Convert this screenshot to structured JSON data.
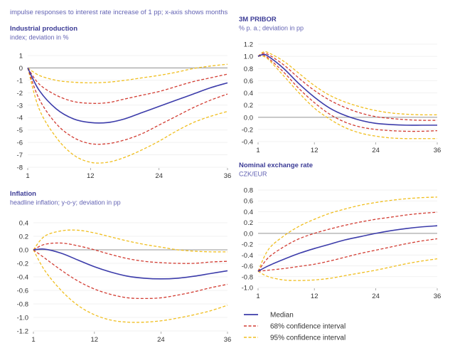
{
  "header": {
    "note": "impulse responses to interest rate increase of 1 pp; x-axis shows months"
  },
  "colors": {
    "median": "#3c3caa",
    "ci68": "#d23c32",
    "ci95": "#f0be1e",
    "title": "#3c3c96",
    "subtitle": "#6464b4",
    "zero": "#aaaaaa",
    "grid": "#eeeeee"
  },
  "legend": {
    "position": "bottom-right",
    "items": [
      "Median",
      "68% confidence interval",
      "95% confidence interval"
    ]
  },
  "chart_data": [
    {
      "type": "line",
      "title": "Industrial production",
      "subtitle": "index; deviation in %",
      "xticks": [
        "1",
        "12",
        "24",
        "36"
      ],
      "yticks": [
        "1",
        "0",
        "-1",
        "-2",
        "-3",
        "-4",
        "-5",
        "-6",
        "-7",
        "-8"
      ],
      "xlim": [
        1,
        36
      ],
      "ylim": [
        -8,
        1
      ],
      "grid": true,
      "x": [
        1,
        3,
        6,
        9,
        12,
        15,
        18,
        21,
        24,
        27,
        30,
        33,
        36
      ],
      "series": [
        {
          "name": "Median",
          "values": [
            0,
            -1.8,
            -3.3,
            -4.1,
            -4.4,
            -4.4,
            -4.1,
            -3.6,
            -3.1,
            -2.6,
            -2.1,
            -1.6,
            -1.2
          ]
        },
        {
          "name": "68% confidence interval",
          "values": [
            0,
            -1.3,
            -2.2,
            -2.7,
            -2.85,
            -2.8,
            -2.5,
            -2.2,
            -1.9,
            -1.5,
            -1.1,
            -0.8,
            -0.5
          ]
        },
        {
          "name": "68% confidence interval",
          "values": [
            0,
            -2.5,
            -4.5,
            -5.6,
            -6.1,
            -6.1,
            -5.8,
            -5.3,
            -4.6,
            -3.9,
            -3.2,
            -2.6,
            -2.1
          ]
        },
        {
          "name": "95% confidence interval",
          "values": [
            0,
            -0.6,
            -1.0,
            -1.15,
            -1.2,
            -1.15,
            -1.0,
            -0.8,
            -0.6,
            -0.35,
            -0.05,
            0.15,
            0.3
          ]
        },
        {
          "name": "95% confidence interval",
          "values": [
            0,
            -3.3,
            -5.6,
            -7.0,
            -7.6,
            -7.6,
            -7.2,
            -6.6,
            -5.9,
            -5.1,
            -4.4,
            -3.9,
            -3.5
          ]
        }
      ]
    },
    {
      "type": "line",
      "title": "3M PRIBOR",
      "subtitle": "% p. a.; deviation in pp",
      "xticks": [
        "1",
        "12",
        "24",
        "36"
      ],
      "yticks": [
        "1.2",
        "1.0",
        "0.8",
        "0.6",
        "0.4",
        "0.2",
        "0.0",
        "-0.2",
        "-0.4"
      ],
      "xlim": [
        1,
        36
      ],
      "ylim": [
        -0.4,
        1.2
      ],
      "grid": true,
      "x": [
        1,
        2,
        3,
        6,
        9,
        12,
        15,
        18,
        21,
        24,
        27,
        30,
        33,
        36
      ],
      "series": [
        {
          "name": "Median",
          "values": [
            1.0,
            1.03,
            1.0,
            0.8,
            0.55,
            0.33,
            0.15,
            0.03,
            -0.05,
            -0.1,
            -0.12,
            -0.13,
            -0.13,
            -0.13
          ]
        },
        {
          "name": "68% confidence interval",
          "values": [
            1.0,
            1.05,
            1.03,
            0.86,
            0.64,
            0.44,
            0.28,
            0.16,
            0.07,
            0.01,
            -0.02,
            -0.04,
            -0.05,
            -0.05
          ]
        },
        {
          "name": "68% confidence interval",
          "values": [
            1.0,
            1.02,
            0.97,
            0.74,
            0.47,
            0.24,
            0.05,
            -0.08,
            -0.16,
            -0.2,
            -0.22,
            -0.23,
            -0.23,
            -0.22
          ]
        },
        {
          "name": "95% confidence interval",
          "values": [
            1.0,
            1.07,
            1.06,
            0.92,
            0.72,
            0.52,
            0.36,
            0.25,
            0.17,
            0.11,
            0.07,
            0.05,
            0.04,
            0.04
          ]
        },
        {
          "name": "95% confidence interval",
          "values": [
            1.0,
            1.0,
            0.95,
            0.68,
            0.4,
            0.15,
            -0.03,
            -0.17,
            -0.26,
            -0.31,
            -0.34,
            -0.35,
            -0.35,
            -0.35
          ]
        }
      ]
    },
    {
      "type": "line",
      "title": "Inflation",
      "subtitle": "headline inflation; y-o-y; deviation in pp",
      "xticks": [
        "1",
        "12",
        "24",
        "36"
      ],
      "yticks": [
        "0.4",
        "0.2",
        "0.0",
        "-0.2",
        "-0.4",
        "-0.6",
        "-0.8",
        "-1.0",
        "-1.2"
      ],
      "xlim": [
        1,
        36
      ],
      "ylim": [
        -1.2,
        0.4
      ],
      "grid": true,
      "x": [
        1,
        3,
        6,
        9,
        12,
        15,
        18,
        21,
        24,
        27,
        30,
        33,
        36
      ],
      "series": [
        {
          "name": "Median",
          "values": [
            0,
            0.01,
            -0.05,
            -0.15,
            -0.25,
            -0.33,
            -0.39,
            -0.42,
            -0.43,
            -0.42,
            -0.39,
            -0.35,
            -0.31
          ]
        },
        {
          "name": "68% confidence interval",
          "values": [
            0,
            0.08,
            0.1,
            0.06,
            0.0,
            -0.07,
            -0.13,
            -0.17,
            -0.19,
            -0.2,
            -0.2,
            -0.18,
            -0.17
          ]
        },
        {
          "name": "68% confidence interval",
          "values": [
            0,
            -0.12,
            -0.3,
            -0.46,
            -0.58,
            -0.66,
            -0.71,
            -0.72,
            -0.71,
            -0.67,
            -0.62,
            -0.56,
            -0.51
          ]
        },
        {
          "name": "95% confidence interval",
          "values": [
            0,
            0.2,
            0.28,
            0.29,
            0.25,
            0.19,
            0.13,
            0.08,
            0.04,
            0.0,
            -0.02,
            -0.03,
            -0.03
          ]
        },
        {
          "name": "95% confidence interval",
          "values": [
            0,
            -0.3,
            -0.6,
            -0.82,
            -0.96,
            -1.04,
            -1.07,
            -1.07,
            -1.05,
            -1.01,
            -0.96,
            -0.9,
            -0.82
          ]
        }
      ]
    },
    {
      "type": "line",
      "title": "Nominal exchange rate",
      "subtitle": "CZK/EUR",
      "xticks": [
        "1",
        "12",
        "24",
        "36"
      ],
      "yticks": [
        "0.8",
        "0.6",
        "0.4",
        "0.2",
        "0.0",
        "-0.2",
        "-0.4",
        "-0.6",
        "-0.8",
        "-1.0"
      ],
      "xlim": [
        1,
        36
      ],
      "ylim": [
        -1.0,
        0.8
      ],
      "grid": true,
      "x": [
        1,
        3,
        6,
        9,
        12,
        15,
        18,
        21,
        24,
        27,
        30,
        33,
        36
      ],
      "series": [
        {
          "name": "Median",
          "values": [
            -0.7,
            -0.6,
            -0.48,
            -0.37,
            -0.28,
            -0.2,
            -0.12,
            -0.06,
            0.0,
            0.05,
            0.09,
            0.12,
            0.14
          ]
        },
        {
          "name": "68% confidence interval",
          "values": [
            -0.7,
            -0.45,
            -0.25,
            -0.1,
            0.0,
            0.08,
            0.15,
            0.21,
            0.26,
            0.3,
            0.34,
            0.37,
            0.39
          ]
        },
        {
          "name": "68% confidence interval",
          "values": [
            -0.7,
            -0.68,
            -0.65,
            -0.61,
            -0.57,
            -0.51,
            -0.44,
            -0.37,
            -0.31,
            -0.25,
            -0.19,
            -0.14,
            -0.1
          ]
        },
        {
          "name": "95% confidence interval",
          "values": [
            -0.7,
            -0.3,
            -0.05,
            0.13,
            0.26,
            0.37,
            0.45,
            0.52,
            0.57,
            0.61,
            0.64,
            0.66,
            0.67
          ]
        },
        {
          "name": "95% confidence interval",
          "values": [
            -0.7,
            -0.8,
            -0.86,
            -0.87,
            -0.86,
            -0.83,
            -0.78,
            -0.73,
            -0.68,
            -0.62,
            -0.56,
            -0.51,
            -0.47
          ]
        }
      ]
    }
  ]
}
